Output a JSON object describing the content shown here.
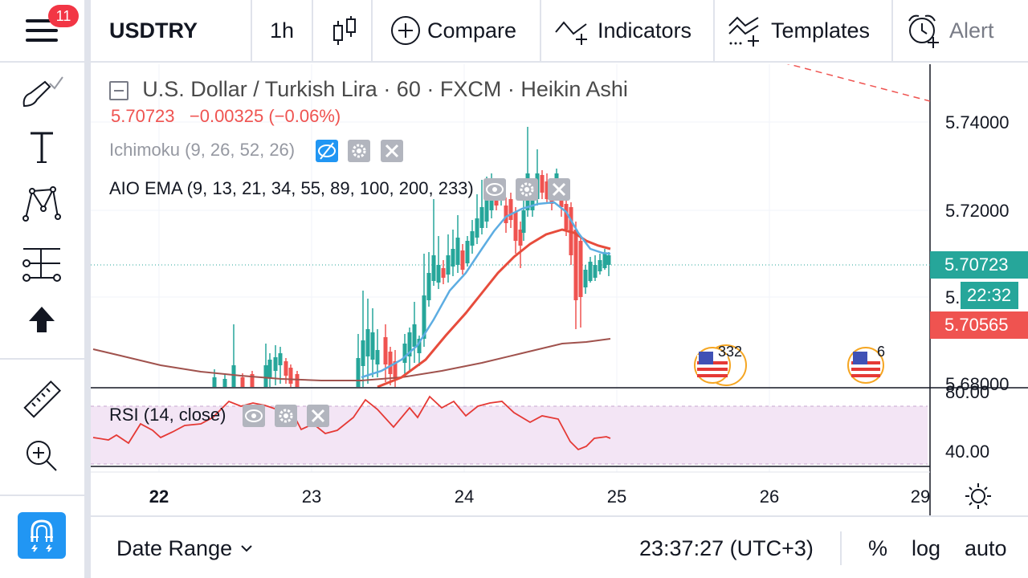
{
  "toolbar": {
    "notification_count": "11",
    "symbol": "USDTRY",
    "interval": "1h",
    "compare_label": "Compare",
    "indicators_label": "Indicators",
    "templates_label": "Templates",
    "alert_label": "Alert"
  },
  "legend": {
    "title": "U.S. Dollar / Turkish Lira · 60 · FXCM · Heikin Ashi",
    "last_price": "5.70723",
    "change": "−0.00325 (−0.06%)",
    "ichimoku": "Ichimoku (9, 26, 52, 26)",
    "aio_ema": "AIO EMA (9, 13, 21, 34, 55, 89, 100, 200, 233)",
    "rsi": "RSI (14, close)"
  },
  "price_axis": {
    "p1": "5.74000",
    "p2": "5.72000",
    "p3": "5.",
    "p4": "5.68000",
    "rsi_80": "80.00",
    "rsi_40": "40.00"
  },
  "tags": {
    "last_price": "5.70723",
    "countdown": "22:32",
    "low_price": "5.70565"
  },
  "events": {
    "us_event_1_count": "332",
    "us_event_2_count": "6"
  },
  "time_axis": [
    "22",
    "23",
    "24",
    "25",
    "26",
    "29"
  ],
  "bottom": {
    "date_range": "Date Range",
    "clock": "23:37:27 (UTC+3)",
    "percent": "%",
    "log": "log",
    "auto": "auto"
  },
  "colors": {
    "up": "#26a69a",
    "down": "#ef5350",
    "ema_fast": "#5dade2",
    "ema_mid": "#e74c3c",
    "ema_slow": "#a0524d",
    "rsi_line": "#e53935",
    "rsi_band": "#f3e5f5",
    "accent": "#2196f3"
  }
}
